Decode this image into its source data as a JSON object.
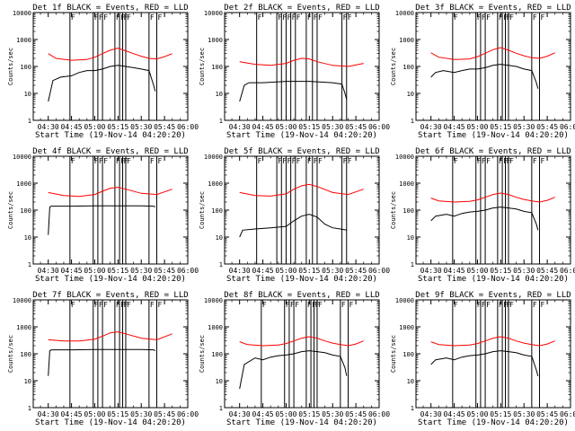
{
  "figure": {
    "xlabel": "Start Time (19-Nov-14 04:20:20)",
    "ylabel": "Counts/sec",
    "x_ticks": [
      "04:30",
      "04:45",
      "05:00",
      "05:15",
      "05:30",
      "05:45",
      "06:00"
    ],
    "y_ticks": [
      "1",
      "10",
      "100",
      "1000",
      "10000"
    ],
    "marker_letter": "F",
    "colors": {
      "events": "#000000",
      "lld": "#ff0000",
      "frame": "#000000",
      "background": "#ffffff"
    }
  },
  "chart_data": [
    {
      "type": "line",
      "title": "Det 1f BLACK = Events, RED = LLD",
      "xlabel": "Start Time (19-Nov-14 04:20:20)",
      "ylabel": "Counts/sec",
      "y_scale": "log",
      "ylim": [
        1,
        10000
      ],
      "x_range": [
        "04:20:20",
        "06:00"
      ],
      "markers": [
        "04:44",
        "04:59",
        "05:02",
        "05:05",
        "05:13",
        "05:16",
        "05:18",
        "05:20",
        "05:35",
        "05:40"
      ],
      "series": [
        {
          "name": "Events",
          "color": "#000000",
          "x": [
            "04:30",
            "04:33",
            "04:38",
            "04:45",
            "04:50",
            "04:55",
            "05:00",
            "05:05",
            "05:10",
            "05:15",
            "05:20",
            "05:25",
            "05:30",
            "05:35",
            "05:38",
            "05:39"
          ],
          "values": [
            5,
            30,
            40,
            45,
            60,
            70,
            70,
            80,
            100,
            110,
            100,
            90,
            80,
            70,
            20,
            12
          ]
        },
        {
          "name": "LLD",
          "color": "#ff0000",
          "x": [
            "04:30",
            "04:35",
            "04:45",
            "04:55",
            "05:00",
            "05:05",
            "05:10",
            "05:15",
            "05:20",
            "05:25",
            "05:30",
            "05:35",
            "05:40",
            "05:45",
            "05:50"
          ],
          "values": [
            300,
            200,
            170,
            180,
            220,
            300,
            400,
            480,
            380,
            300,
            240,
            200,
            190,
            230,
            300
          ]
        }
      ]
    },
    {
      "type": "line",
      "title": "Det 2f BLACK = Events, RED = LLD",
      "xlabel": "Start Time (19-Nov-14 04:20:20)",
      "ylabel": "Counts/sec",
      "y_scale": "log",
      "ylim": [
        1,
        10000
      ],
      "x_range": [
        "04:20:20",
        "06:00"
      ],
      "markers": [
        "04:41",
        "04:54",
        "04:57",
        "05:00",
        "05:03",
        "05:06",
        "05:13",
        "05:17",
        "05:20",
        "05:36",
        "05:39"
      ],
      "series": [
        {
          "name": "Events",
          "color": "#000000",
          "x": [
            "04:30",
            "04:33",
            "04:36",
            "04:45",
            "05:00",
            "05:15",
            "05:30",
            "05:36",
            "05:38",
            "05:39"
          ],
          "values": [
            5,
            20,
            25,
            25,
            28,
            28,
            25,
            22,
            10,
            6
          ]
        },
        {
          "name": "LLD",
          "color": "#ff0000",
          "x": [
            "04:30",
            "04:40",
            "04:50",
            "05:00",
            "05:05",
            "05:10",
            "05:15",
            "05:20",
            "05:30",
            "05:40",
            "05:50"
          ],
          "values": [
            150,
            120,
            110,
            130,
            170,
            200,
            190,
            150,
            110,
            100,
            130
          ]
        }
      ]
    },
    {
      "type": "line",
      "title": "Det 3f BLACK = Events, RED = LLD",
      "xlabel": "Start Time (19-Nov-14 04:20:20)",
      "ylabel": "Counts/sec",
      "y_scale": "log",
      "ylim": [
        1,
        10000
      ],
      "x_range": [
        "04:20:20",
        "06:00"
      ],
      "markers": [
        "04:44",
        "04:59",
        "05:02",
        "05:05",
        "05:13",
        "05:16",
        "05:18",
        "05:20",
        "05:35",
        "05:40"
      ],
      "series": [
        {
          "name": "Events",
          "color": "#000000",
          "x": [
            "04:30",
            "04:33",
            "04:38",
            "04:45",
            "04:50",
            "04:55",
            "05:00",
            "05:05",
            "05:10",
            "05:15",
            "05:20",
            "05:25",
            "05:30",
            "05:35",
            "05:38",
            "05:39"
          ],
          "values": [
            40,
            60,
            70,
            60,
            70,
            80,
            80,
            90,
            110,
            120,
            110,
            100,
            80,
            70,
            25,
            15
          ]
        },
        {
          "name": "LLD",
          "color": "#ff0000",
          "x": [
            "04:30",
            "04:35",
            "04:45",
            "04:55",
            "05:00",
            "05:05",
            "05:10",
            "05:15",
            "05:20",
            "05:25",
            "05:30",
            "05:35",
            "05:40",
            "05:45",
            "05:50"
          ],
          "values": [
            320,
            220,
            180,
            190,
            230,
            310,
            420,
            500,
            400,
            310,
            250,
            210,
            200,
            240,
            320
          ]
        }
      ]
    },
    {
      "type": "line",
      "title": "Det 4f BLACK = Events, RED = LLD",
      "xlabel": "Start Time (19-Nov-14 04:20:20)",
      "ylabel": "Counts/sec",
      "y_scale": "log",
      "ylim": [
        1,
        10000
      ],
      "x_range": [
        "04:20:20",
        "06:00"
      ],
      "markers": [
        "04:44",
        "04:59",
        "05:02",
        "05:05",
        "05:13",
        "05:16",
        "05:18",
        "05:20",
        "05:35",
        "05:40"
      ],
      "series": [
        {
          "name": "Events",
          "color": "#000000",
          "x": [
            "04:30",
            "04:31",
            "04:32",
            "04:45",
            "05:00",
            "05:15",
            "05:30",
            "05:38",
            "05:39"
          ],
          "values": [
            12,
            130,
            140,
            140,
            145,
            145,
            145,
            140,
            130
          ]
        },
        {
          "name": "LLD",
          "color": "#ff0000",
          "x": [
            "04:30",
            "04:40",
            "04:50",
            "05:00",
            "05:05",
            "05:10",
            "05:15",
            "05:20",
            "05:30",
            "05:40",
            "05:50"
          ],
          "values": [
            450,
            350,
            320,
            380,
            500,
            650,
            700,
            600,
            420,
            380,
            600
          ]
        }
      ]
    },
    {
      "type": "line",
      "title": "Det 5f BLACK = Events, RED = LLD",
      "xlabel": "Start Time (19-Nov-14 04:20:20)",
      "ylabel": "Counts/sec",
      "y_scale": "log",
      "ylim": [
        1,
        10000
      ],
      "x_range": [
        "04:20:20",
        "06:00"
      ],
      "markers": [
        "04:41",
        "04:54",
        "04:57",
        "05:00",
        "05:03",
        "05:06",
        "05:13",
        "05:17",
        "05:20",
        "05:36",
        "05:39"
      ],
      "series": [
        {
          "name": "Events",
          "color": "#000000",
          "x": [
            "04:30",
            "04:32",
            "04:40",
            "04:50",
            "05:00",
            "05:05",
            "05:10",
            "05:15",
            "05:20",
            "05:25",
            "05:30",
            "05:35",
            "05:39"
          ],
          "values": [
            10,
            18,
            20,
            22,
            25,
            40,
            60,
            70,
            55,
            30,
            22,
            20,
            18
          ]
        },
        {
          "name": "LLD",
          "color": "#ff0000",
          "x": [
            "04:30",
            "04:40",
            "04:50",
            "05:00",
            "05:05",
            "05:10",
            "05:15",
            "05:20",
            "05:30",
            "05:40",
            "05:50"
          ],
          "values": [
            450,
            350,
            330,
            400,
            600,
            800,
            900,
            750,
            450,
            380,
            600
          ]
        }
      ]
    },
    {
      "type": "line",
      "title": "Det 6f BLACK = Events, RED = LLD",
      "xlabel": "Start Time (19-Nov-14 04:20:20)",
      "ylabel": "Counts/sec",
      "y_scale": "log",
      "ylim": [
        1,
        10000
      ],
      "x_range": [
        "04:20:20",
        "06:00"
      ],
      "markers": [
        "04:44",
        "04:59",
        "05:02",
        "05:05",
        "05:13",
        "05:16",
        "05:18",
        "05:20",
        "05:35",
        "05:40"
      ],
      "series": [
        {
          "name": "Events",
          "color": "#000000",
          "x": [
            "04:30",
            "04:33",
            "04:40",
            "04:45",
            "04:50",
            "04:55",
            "05:00",
            "05:05",
            "05:10",
            "05:15",
            "05:20",
            "05:25",
            "05:30",
            "05:35",
            "05:38",
            "05:39"
          ],
          "values": [
            40,
            60,
            70,
            60,
            75,
            85,
            90,
            100,
            120,
            130,
            120,
            110,
            90,
            80,
            30,
            18
          ]
        },
        {
          "name": "LLD",
          "color": "#ff0000",
          "x": [
            "04:30",
            "04:35",
            "04:45",
            "04:55",
            "05:00",
            "05:05",
            "05:10",
            "05:15",
            "05:20",
            "05:25",
            "05:30",
            "05:35",
            "05:40",
            "05:45",
            "05:50"
          ],
          "values": [
            280,
            220,
            200,
            210,
            240,
            300,
            380,
            430,
            380,
            300,
            250,
            220,
            200,
            230,
            300
          ]
        }
      ]
    },
    {
      "type": "line",
      "title": "Det 7f BLACK = Events, RED = LLD",
      "xlabel": "Start Time (19-Nov-14 04:20:20)",
      "ylabel": "Counts/sec",
      "y_scale": "log",
      "ylim": [
        1,
        10000
      ],
      "x_range": [
        "04:20:20",
        "06:00"
      ],
      "markers": [
        "04:44",
        "04:59",
        "05:02",
        "05:05",
        "05:13",
        "05:16",
        "05:18",
        "05:20",
        "05:35",
        "05:40"
      ],
      "series": [
        {
          "name": "Events",
          "color": "#000000",
          "x": [
            "04:30",
            "04:31",
            "04:32",
            "04:45",
            "05:00",
            "05:15",
            "05:30",
            "05:38",
            "05:39"
          ],
          "values": [
            15,
            130,
            140,
            140,
            145,
            145,
            145,
            140,
            130
          ]
        },
        {
          "name": "LLD",
          "color": "#ff0000",
          "x": [
            "04:30",
            "04:40",
            "04:50",
            "05:00",
            "05:05",
            "05:10",
            "05:15",
            "05:20",
            "05:30",
            "05:40",
            "05:50"
          ],
          "values": [
            330,
            300,
            300,
            350,
            450,
            600,
            650,
            550,
            380,
            330,
            550
          ]
        }
      ]
    },
    {
      "type": "line",
      "title": "Det 8f BLACK = Events, RED = LLD",
      "xlabel": "Start Time (19-Nov-14 04:20:20)",
      "ylabel": "Counts/sec",
      "y_scale": "log",
      "ylim": [
        1,
        10000
      ],
      "x_range": [
        "04:20:20",
        "06:00"
      ],
      "markers": [
        "04:44",
        "04:59",
        "05:02",
        "05:05",
        "05:13",
        "05:16",
        "05:18",
        "05:20",
        "05:35",
        "05:40"
      ],
      "series": [
        {
          "name": "Events",
          "color": "#000000",
          "x": [
            "04:30",
            "04:33",
            "04:40",
            "04:45",
            "04:50",
            "04:55",
            "05:00",
            "05:05",
            "05:10",
            "05:15",
            "05:20",
            "05:25",
            "05:30",
            "05:35",
            "05:38",
            "05:39"
          ],
          "values": [
            5,
            40,
            70,
            60,
            75,
            85,
            90,
            100,
            120,
            130,
            120,
            110,
            90,
            80,
            30,
            15
          ]
        },
        {
          "name": "LLD",
          "color": "#ff0000",
          "x": [
            "04:30",
            "04:35",
            "04:45",
            "04:55",
            "05:00",
            "05:05",
            "05:10",
            "05:15",
            "05:20",
            "05:25",
            "05:30",
            "05:35",
            "05:40",
            "05:45",
            "05:50"
          ],
          "values": [
            280,
            220,
            200,
            210,
            240,
            300,
            380,
            430,
            380,
            300,
            250,
            220,
            200,
            230,
            300
          ]
        }
      ]
    },
    {
      "type": "line",
      "title": "Det 9f BLACK = Events, RED = LLD",
      "xlabel": "Start Time (19-Nov-14 04:20:20)",
      "ylabel": "Counts/sec",
      "y_scale": "log",
      "ylim": [
        1,
        10000
      ],
      "x_range": [
        "04:20:20",
        "06:00"
      ],
      "markers": [
        "04:44",
        "04:59",
        "05:02",
        "05:05",
        "05:13",
        "05:16",
        "05:18",
        "05:20",
        "05:35",
        "05:40"
      ],
      "series": [
        {
          "name": "Events",
          "color": "#000000",
          "x": [
            "04:30",
            "04:33",
            "04:40",
            "04:45",
            "04:50",
            "04:55",
            "05:00",
            "05:05",
            "05:10",
            "05:15",
            "05:20",
            "05:25",
            "05:30",
            "05:35",
            "05:38",
            "05:39"
          ],
          "values": [
            40,
            60,
            70,
            60,
            75,
            85,
            90,
            100,
            120,
            130,
            120,
            110,
            90,
            80,
            25,
            15
          ]
        },
        {
          "name": "LLD",
          "color": "#ff0000",
          "x": [
            "04:30",
            "04:35",
            "04:45",
            "04:55",
            "05:00",
            "05:05",
            "05:10",
            "05:15",
            "05:20",
            "05:25",
            "05:30",
            "05:35",
            "05:40",
            "05:45",
            "05:50"
          ],
          "values": [
            280,
            220,
            200,
            210,
            240,
            300,
            380,
            430,
            380,
            300,
            250,
            220,
            200,
            230,
            300
          ]
        }
      ]
    }
  ]
}
